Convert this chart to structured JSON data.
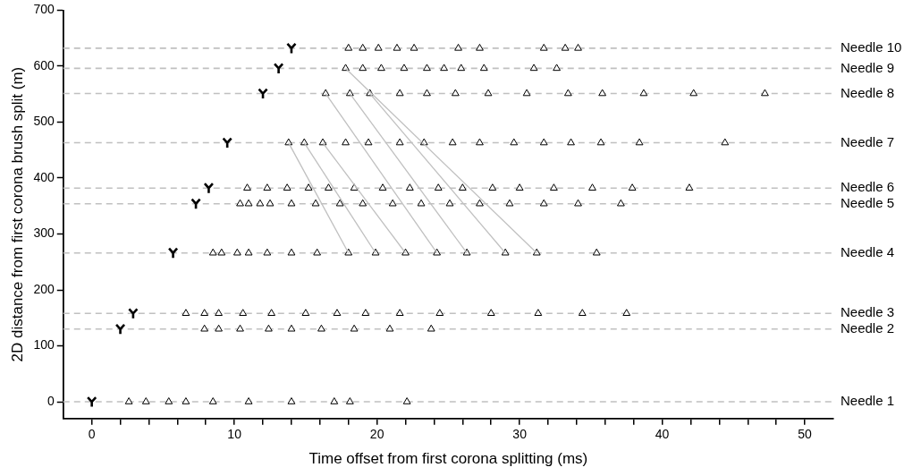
{
  "chart_data": {
    "type": "scatter",
    "xlabel": "Time offset from first corona splitting (ms)",
    "ylabel": "2D distance from first corona brush split (m)",
    "xlim": [
      -2,
      52
    ],
    "ylim": [
      -30,
      700
    ],
    "xticks": [
      0,
      {
        "value": 2,
        "label": null
      },
      {
        "value": 4,
        "label": null
      },
      {
        "value": 6,
        "label": null
      },
      {
        "value": 8,
        "label": null
      },
      10,
      {
        "value": 12,
        "label": null
      },
      {
        "value": 14,
        "label": null
      },
      {
        "value": 16,
        "label": null
      },
      {
        "value": 18,
        "label": null
      },
      20,
      {
        "value": 22,
        "label": null
      },
      {
        "value": 24,
        "label": null
      },
      {
        "value": 26,
        "label": null
      },
      {
        "value": 28,
        "label": null
      },
      30,
      {
        "value": 32,
        "label": null
      },
      {
        "value": 34,
        "label": null
      },
      {
        "value": 36,
        "label": null
      },
      {
        "value": 38,
        "label": null
      },
      40,
      {
        "value": 42,
        "label": null
      },
      {
        "value": 44,
        "label": null
      },
      {
        "value": 46,
        "label": null
      },
      {
        "value": 48,
        "label": null
      },
      50
    ],
    "yticks": [
      0,
      100,
      200,
      300,
      400,
      500,
      600,
      700
    ],
    "grid": false,
    "legend": false,
    "ref_lines": [
      {
        "axis": "y",
        "value": 0,
        "label": "Needle 1",
        "color": "#c0c0c0",
        "line_style": "dashed"
      },
      {
        "axis": "y",
        "value": 130,
        "label": "Needle 2",
        "color": "#c0c0c0",
        "line_style": "dashed"
      },
      {
        "axis": "y",
        "value": 158,
        "label": "Needle 3",
        "color": "#c0c0c0",
        "line_style": "dashed"
      },
      {
        "axis": "y",
        "value": 266,
        "label": "Needle 4",
        "color": "#c0c0c0",
        "line_style": "dashed"
      },
      {
        "axis": "y",
        "value": 354,
        "label": "Needle 5",
        "color": "#c0c0c0",
        "line_style": "dashed"
      },
      {
        "axis": "y",
        "value": 382,
        "label": "Needle 6",
        "color": "#c0c0c0",
        "line_style": "dashed"
      },
      {
        "axis": "y",
        "value": 463,
        "label": "Needle 7",
        "color": "#c0c0c0",
        "line_style": "dashed"
      },
      {
        "axis": "y",
        "value": 551,
        "label": "Needle 8",
        "color": "#c0c0c0",
        "line_style": "dashed"
      },
      {
        "axis": "y",
        "value": 596,
        "label": "Needle 9",
        "color": "#c0c0c0",
        "line_style": "dashed"
      },
      {
        "axis": "y",
        "value": 632,
        "label": "Needle 10",
        "color": "#c0c0c0",
        "line_style": "dashed"
      }
    ],
    "series": [
      {
        "type": "line",
        "color": "#c0c0c0",
        "marker": "none",
        "x": [
          13.8,
          18.0
        ],
        "values": [
          463,
          266
        ]
      },
      {
        "type": "line",
        "color": "#c0c0c0",
        "marker": "none",
        "x": [
          14.9,
          19.9
        ],
        "values": [
          463,
          266
        ]
      },
      {
        "type": "line",
        "color": "#c0c0c0",
        "marker": "none",
        "x": [
          16.2,
          22.0
        ],
        "values": [
          463,
          266
        ]
      },
      {
        "type": "line",
        "color": "#c0c0c0",
        "marker": "none",
        "x": [
          16.4,
          24.2
        ],
        "values": [
          551,
          266
        ]
      },
      {
        "type": "line",
        "color": "#c0c0c0",
        "marker": "none",
        "x": [
          18.1,
          26.3
        ],
        "values": [
          551,
          266
        ]
      },
      {
        "type": "line",
        "color": "#c0c0c0",
        "marker": "none",
        "x": [
          19.5,
          29.0
        ],
        "values": [
          551,
          266
        ]
      },
      {
        "type": "line",
        "color": "#c0c0c0",
        "marker": "none",
        "x": [
          17.8,
          31.2
        ],
        "values": [
          596,
          266
        ]
      },
      {
        "type": "scatter",
        "color": "#000000",
        "marker": "cross",
        "x": [
          0,
          2.0,
          2.9,
          5.7,
          7.3,
          8.2,
          9.5,
          12.0,
          13.1,
          14.0
        ],
        "values": [
          0,
          130,
          158,
          266,
          354,
          382,
          463,
          551,
          596,
          632
        ]
      },
      {
        "type": "scatter",
        "color": "#000000",
        "marker": "triangle",
        "x": [
          2.6,
          3.8,
          5.4,
          6.6,
          8.5,
          11.0,
          14.0,
          17.0,
          18.1,
          22.1
        ],
        "values": [
          0,
          0,
          0,
          0,
          0,
          0,
          0,
          0,
          0,
          0
        ]
      },
      {
        "type": "scatter",
        "color": "#000000",
        "marker": "triangle",
        "x": [
          7.9,
          8.9,
          10.4,
          12.4,
          14.0,
          16.1,
          18.4,
          20.9,
          23.8
        ],
        "values": [
          130,
          130,
          130,
          130,
          130,
          130,
          130,
          130,
          130
        ]
      },
      {
        "type": "scatter",
        "color": "#000000",
        "marker": "triangle",
        "x": [
          6.6,
          7.9,
          8.9,
          10.6,
          12.6,
          15.0,
          17.2,
          19.2,
          21.6,
          24.4,
          28.0,
          31.3,
          34.4,
          37.5
        ],
        "values": [
          158,
          158,
          158,
          158,
          158,
          158,
          158,
          158,
          158,
          158,
          158,
          158,
          158,
          158
        ]
      },
      {
        "type": "scatter",
        "color": "#000000",
        "marker": "triangle",
        "x": [
          8.5,
          9.1,
          10.2,
          11.0,
          12.3,
          14.0,
          15.8,
          18.0,
          19.9,
          22.0,
          24.2,
          26.3,
          29.0,
          31.2,
          35.4
        ],
        "values": [
          266,
          266,
          266,
          266,
          266,
          266,
          266,
          266,
          266,
          266,
          266,
          266,
          266,
          266,
          266
        ]
      },
      {
        "type": "scatter",
        "color": "#000000",
        "marker": "triangle",
        "x": [
          10.4,
          11.0,
          11.8,
          12.5,
          14.0,
          15.7,
          17.4,
          19.0,
          21.1,
          23.1,
          25.1,
          27.2,
          29.3,
          31.7,
          34.1,
          37.1
        ],
        "values": [
          354,
          354,
          354,
          354,
          354,
          354,
          354,
          354,
          354,
          354,
          354,
          354,
          354,
          354,
          354,
          354
        ]
      },
      {
        "type": "scatter",
        "color": "#000000",
        "marker": "triangle",
        "x": [
          10.9,
          12.3,
          13.7,
          15.2,
          16.6,
          18.4,
          20.4,
          22.3,
          24.3,
          26.0,
          28.1,
          30.0,
          32.4,
          35.1,
          37.9,
          41.9
        ],
        "values": [
          382,
          382,
          382,
          382,
          382,
          382,
          382,
          382,
          382,
          382,
          382,
          382,
          382,
          382,
          382,
          382
        ]
      },
      {
        "type": "scatter",
        "color": "#000000",
        "marker": "triangle",
        "x": [
          13.8,
          14.9,
          16.2,
          17.8,
          19.4,
          21.6,
          23.3,
          25.3,
          27.2,
          29.6,
          31.7,
          33.6,
          35.7,
          38.4,
          44.4
        ],
        "values": [
          463,
          463,
          463,
          463,
          463,
          463,
          463,
          463,
          463,
          463,
          463,
          463,
          463,
          463,
          463
        ]
      },
      {
        "type": "scatter",
        "color": "#000000",
        "marker": "triangle",
        "x": [
          16.4,
          18.1,
          19.5,
          21.6,
          23.5,
          25.5,
          27.8,
          30.5,
          33.4,
          35.8,
          38.7,
          42.2,
          47.2
        ],
        "values": [
          551,
          551,
          551,
          551,
          551,
          551,
          551,
          551,
          551,
          551,
          551,
          551,
          551
        ]
      },
      {
        "type": "scatter",
        "color": "#000000",
        "marker": "triangle",
        "x": [
          17.8,
          19.0,
          20.3,
          21.9,
          23.5,
          24.7,
          25.9,
          27.5,
          31.0,
          32.6
        ],
        "values": [
          596,
          596,
          596,
          596,
          596,
          596,
          596,
          596,
          596,
          596
        ]
      },
      {
        "type": "scatter",
        "color": "#000000",
        "marker": "triangle",
        "x": [
          18.0,
          19.0,
          20.1,
          21.4,
          22.6,
          25.7,
          27.2,
          31.7,
          33.2,
          34.1
        ],
        "values": [
          632,
          632,
          632,
          632,
          632,
          632,
          632,
          632,
          632,
          632
        ]
      }
    ]
  }
}
